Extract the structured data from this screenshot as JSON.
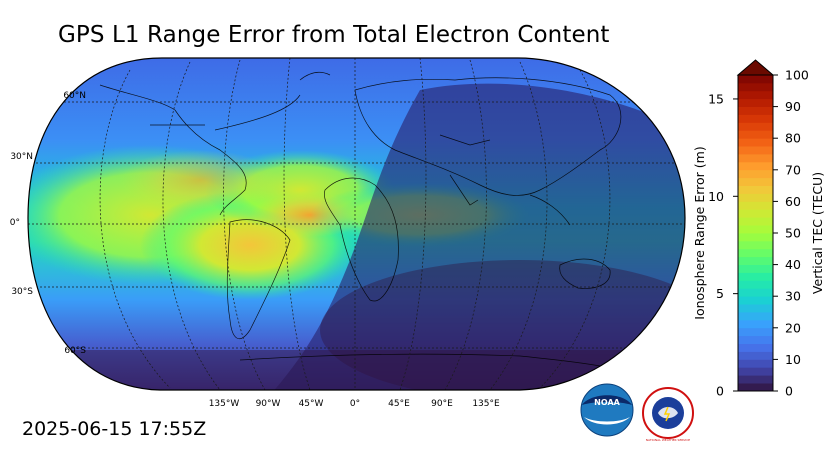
{
  "title": "GPS L1 Range Error from Total Electron Content",
  "timestamp": "2025-06-15 17:55Z",
  "map": {
    "projection": "Robinson",
    "lat_labels": [
      "60°N",
      "30°N",
      "0°",
      "30°S",
      "60°S"
    ],
    "lon_labels": [
      "135°W",
      "90°W",
      "45°W",
      "0°",
      "45°E",
      "90°E",
      "135°E"
    ],
    "gridlines": "dashed",
    "night_side_shading": true
  },
  "colorbar": {
    "left_axis_label": "Ionosphere Range Error (m)",
    "left_ticks": [
      "0",
      "5",
      "10",
      "15"
    ],
    "right_axis_label": "Vertical TEC (TECU)",
    "right_ticks": [
      "0",
      "10",
      "20",
      "30",
      "40",
      "50",
      "60",
      "70",
      "80",
      "90",
      "100"
    ],
    "extend": "max",
    "colormap_stops": [
      "#30123b",
      "#4145ab",
      "#4675ed",
      "#39a2fc",
      "#1bcfd4",
      "#24eca6",
      "#61fc6c",
      "#a4fc3b",
      "#d1e834",
      "#f3c63a",
      "#fe9b2d",
      "#f36315",
      "#d93806",
      "#b11901",
      "#7a0402"
    ],
    "extend_color": "#6b0a00"
  },
  "logos": {
    "noaa_text": "NOAA",
    "nws_text": "NATIONAL WEATHER SERVICE"
  }
}
